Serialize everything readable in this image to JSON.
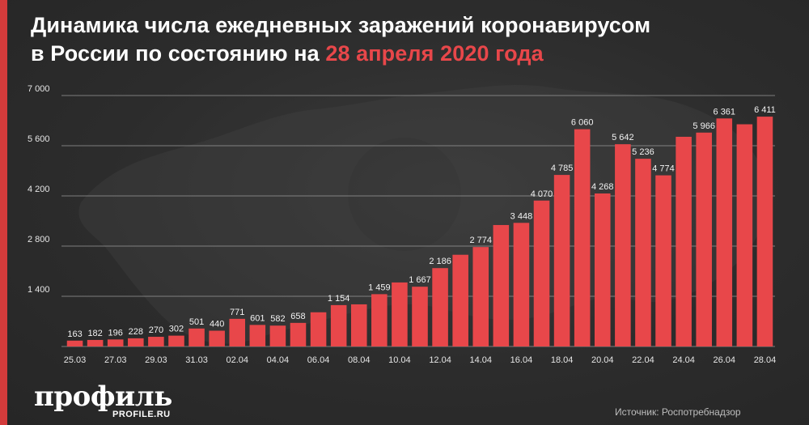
{
  "header": {
    "title_line1": "Динамика числа ежедневных заражений коронавирусом",
    "title_line2_prefix": "в России по состоянию на ",
    "title_date": "28 апреля 2020 года"
  },
  "footer": {
    "brand": "профиль",
    "brand_domain": "PROFILE.RU",
    "source": "Источник: Роспотребнадзор"
  },
  "colors": {
    "background": "#2b2b2b",
    "accent": "#d33b3b",
    "bar": "#e8474a",
    "title_highlight": "#e8474a"
  },
  "chart_data": {
    "type": "bar",
    "title": "Динамика числа ежедневных заражений коронавирусом в России по состоянию на 28 апреля 2020 года",
    "xlabel": "",
    "ylabel": "",
    "ylim": [
      0,
      7000
    ],
    "yticks": [
      1400,
      2800,
      4200,
      5600,
      7000
    ],
    "ytick_labels": [
      "1 400",
      "2 800",
      "4 200",
      "5 600",
      "7 000"
    ],
    "grid": true,
    "categories": [
      "25.03",
      "26.03",
      "27.03",
      "28.03",
      "29.03",
      "30.03",
      "31.03",
      "01.04",
      "02.04",
      "03.04",
      "04.04",
      "05.04",
      "06.04",
      "07.04",
      "08.04",
      "09.04",
      "10.04",
      "11.04",
      "12.04",
      "13.04",
      "14.04",
      "15.04",
      "16.04",
      "17.04",
      "18.04",
      "19.04",
      "20.04",
      "21.04",
      "22.04",
      "23.04",
      "24.04",
      "25.04",
      "26.04",
      "27.04",
      "28.04"
    ],
    "xtick_labels": [
      "25.03",
      "",
      "27.03",
      "",
      "29.03",
      "",
      "31.03",
      "",
      "02.04",
      "",
      "04.04",
      "",
      "06.04",
      "",
      "08.04",
      "",
      "10.04",
      "",
      "12.04",
      "",
      "14.04",
      "",
      "16.04",
      "",
      "18.04",
      "",
      "20.04",
      "",
      "22.04",
      "",
      "24.04",
      "",
      "26.04",
      "",
      "28.04"
    ],
    "values": [
      163,
      182,
      196,
      228,
      270,
      302,
      501,
      440,
      771,
      601,
      582,
      658,
      954,
      1154,
      1175,
      1459,
      1786,
      1667,
      2186,
      2558,
      2774,
      3388,
      3448,
      4070,
      4785,
      6060,
      4268,
      5642,
      5236,
      4774,
      5849,
      5966,
      6361,
      6198,
      6411
    ],
    "data_labels": [
      "163",
      "182",
      "196",
      "228",
      "270",
      "302",
      "501",
      "440",
      "771",
      "601",
      "582",
      "658",
      "",
      "1 154",
      "",
      "1 459",
      "",
      "1 667",
      "2 186",
      "",
      "2 774",
      "",
      "3 448",
      "4 070",
      "4 785",
      "6 060",
      "4 268",
      "5 642",
      "5 236",
      "4 774",
      "",
      "5 966",
      "6 361",
      "",
      "6 411"
    ]
  }
}
